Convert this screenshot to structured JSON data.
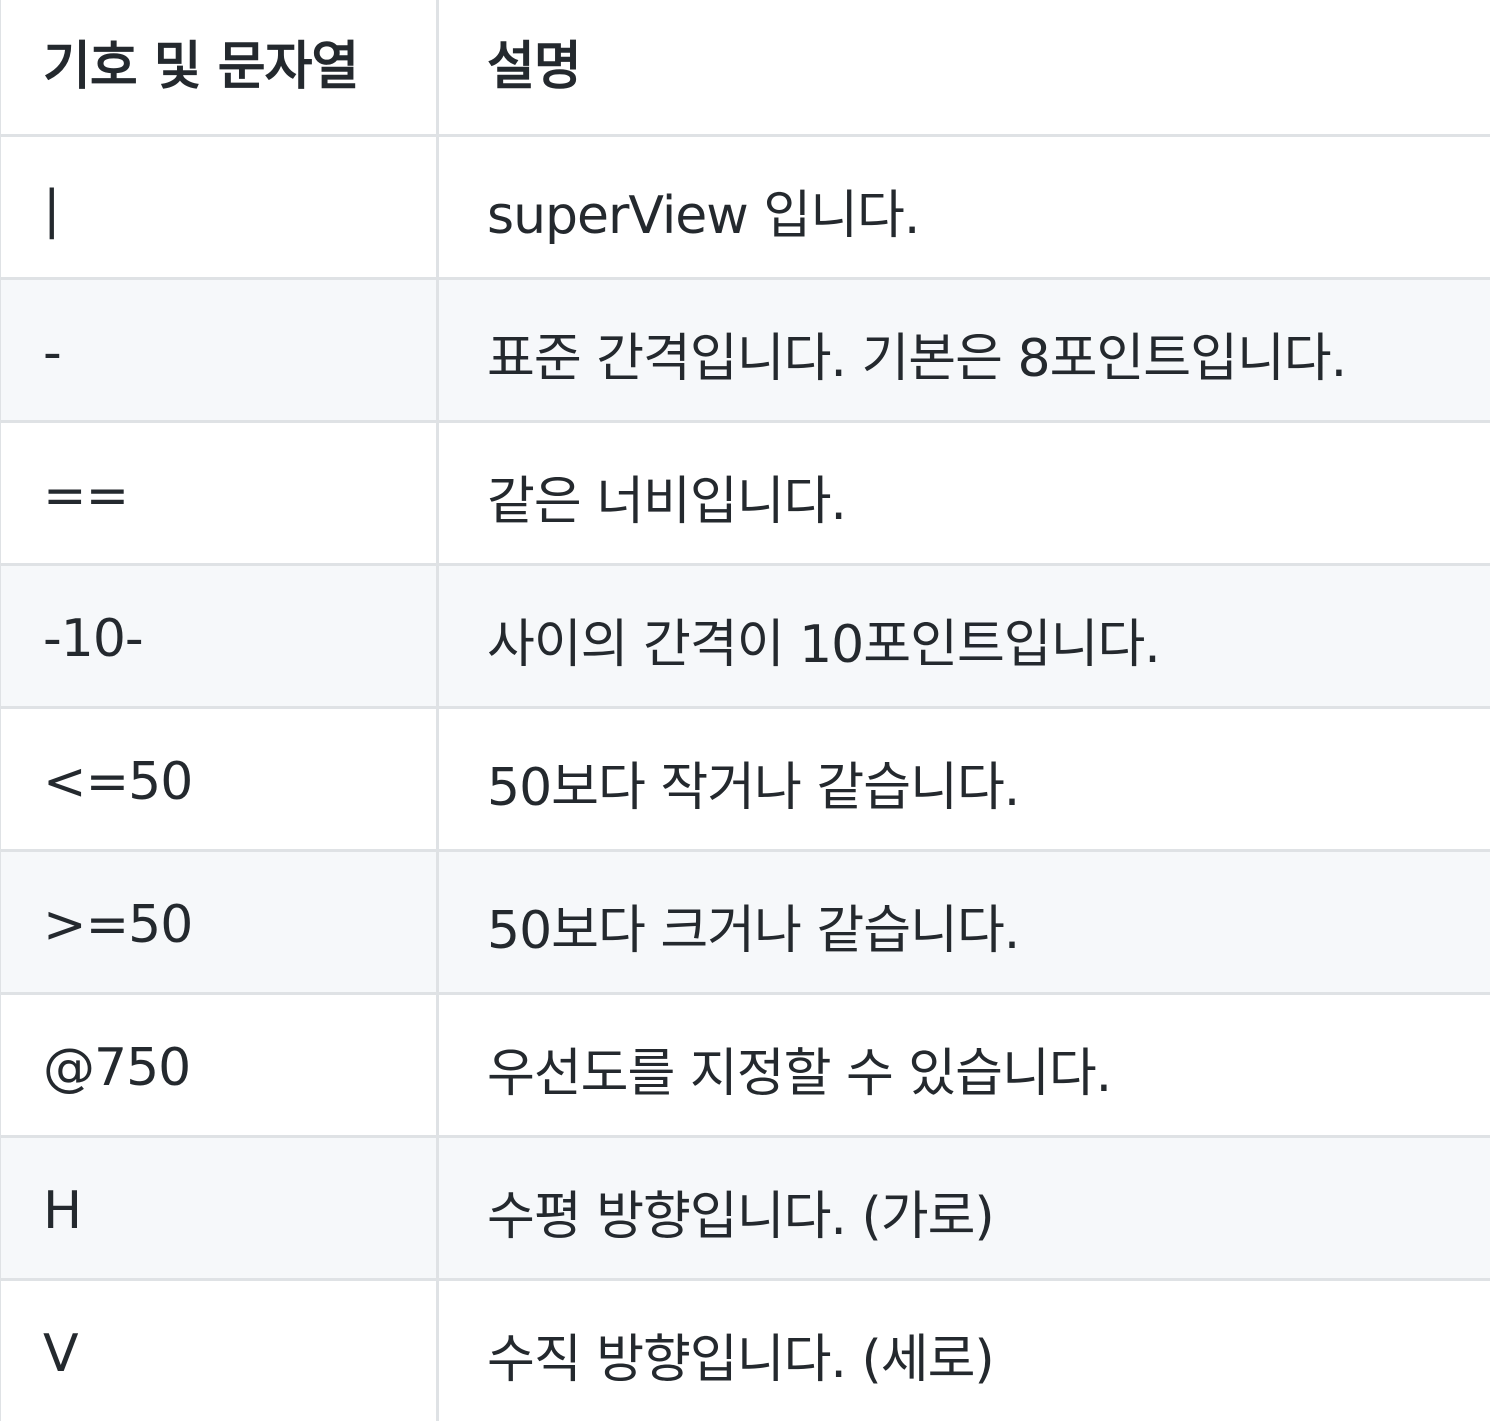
{
  "table": {
    "headers": {
      "symbol": "기호 및 문자열",
      "description": "설명"
    },
    "rows": [
      {
        "symbol": "|",
        "description": "superView 입니다."
      },
      {
        "symbol": "-",
        "description": "표준 간격입니다. 기본은 8포인트입니다."
      },
      {
        "symbol": "==",
        "description": "같은 너비입니다."
      },
      {
        "symbol": "-10-",
        "description": "사이의 간격이 10포인트입니다."
      },
      {
        "symbol": "<=50",
        "description": "50보다 작거나 같습니다."
      },
      {
        "symbol": ">=50",
        "description": "50보다 크거나 같습니다."
      },
      {
        "symbol": "@750",
        "description": "우선도를 지정할 수 있습니다."
      },
      {
        "symbol": "H",
        "description": "수평 방향입니다. (가로)"
      },
      {
        "symbol": "V",
        "description": "수직 방향입니다. (세로)"
      }
    ]
  }
}
